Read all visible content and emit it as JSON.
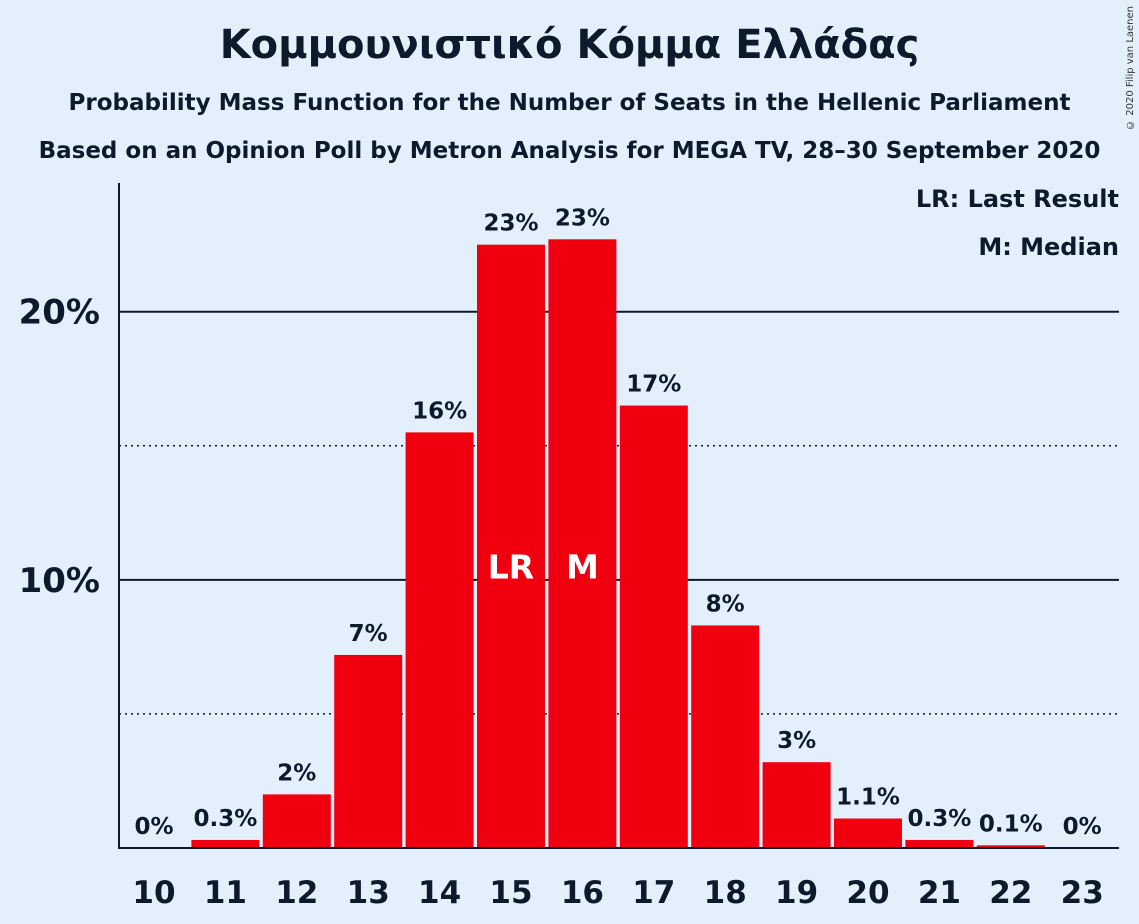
{
  "header": {
    "title": "Κομμουνιστικό Κόμμα Ελλάδας",
    "subtitle1": "Probability Mass Function for the Number of Seats in the Hellenic Parliament",
    "subtitle2": "Based on an Opinion Poll by Metron Analysis for MEGA TV, 28–30 September 2020",
    "copyright": "© 2020 Filip van Laenen"
  },
  "legend": {
    "last_result": "LR: Last Result",
    "median": "M: Median"
  },
  "colors": {
    "bar": "#f0000f",
    "background": "#e3f0fc",
    "text": "#0d1a2b"
  },
  "chart_data": {
    "type": "bar",
    "categories": [
      "10",
      "11",
      "12",
      "13",
      "14",
      "15",
      "16",
      "17",
      "18",
      "19",
      "20",
      "21",
      "22",
      "23"
    ],
    "values": [
      0,
      0.3,
      2.0,
      7.2,
      15.5,
      22.5,
      22.7,
      16.5,
      8.3,
      3.2,
      1.1,
      0.3,
      0.1,
      0
    ],
    "labels": [
      "0%",
      "0.3%",
      "2%",
      "7%",
      "16%",
      "23%",
      "23%",
      "17%",
      "8%",
      "3%",
      "1.1%",
      "0.3%",
      "0.1%",
      "0%"
    ],
    "markers": {
      "15": "LR",
      "16": "M"
    },
    "yticks": [
      {
        "value": 10,
        "label": "10%"
      },
      {
        "value": 20,
        "label": "20%"
      }
    ],
    "minor_gridlines": [
      5,
      15
    ],
    "ylim": [
      0,
      24.8
    ],
    "legend_position": "top-right",
    "grid": true
  }
}
